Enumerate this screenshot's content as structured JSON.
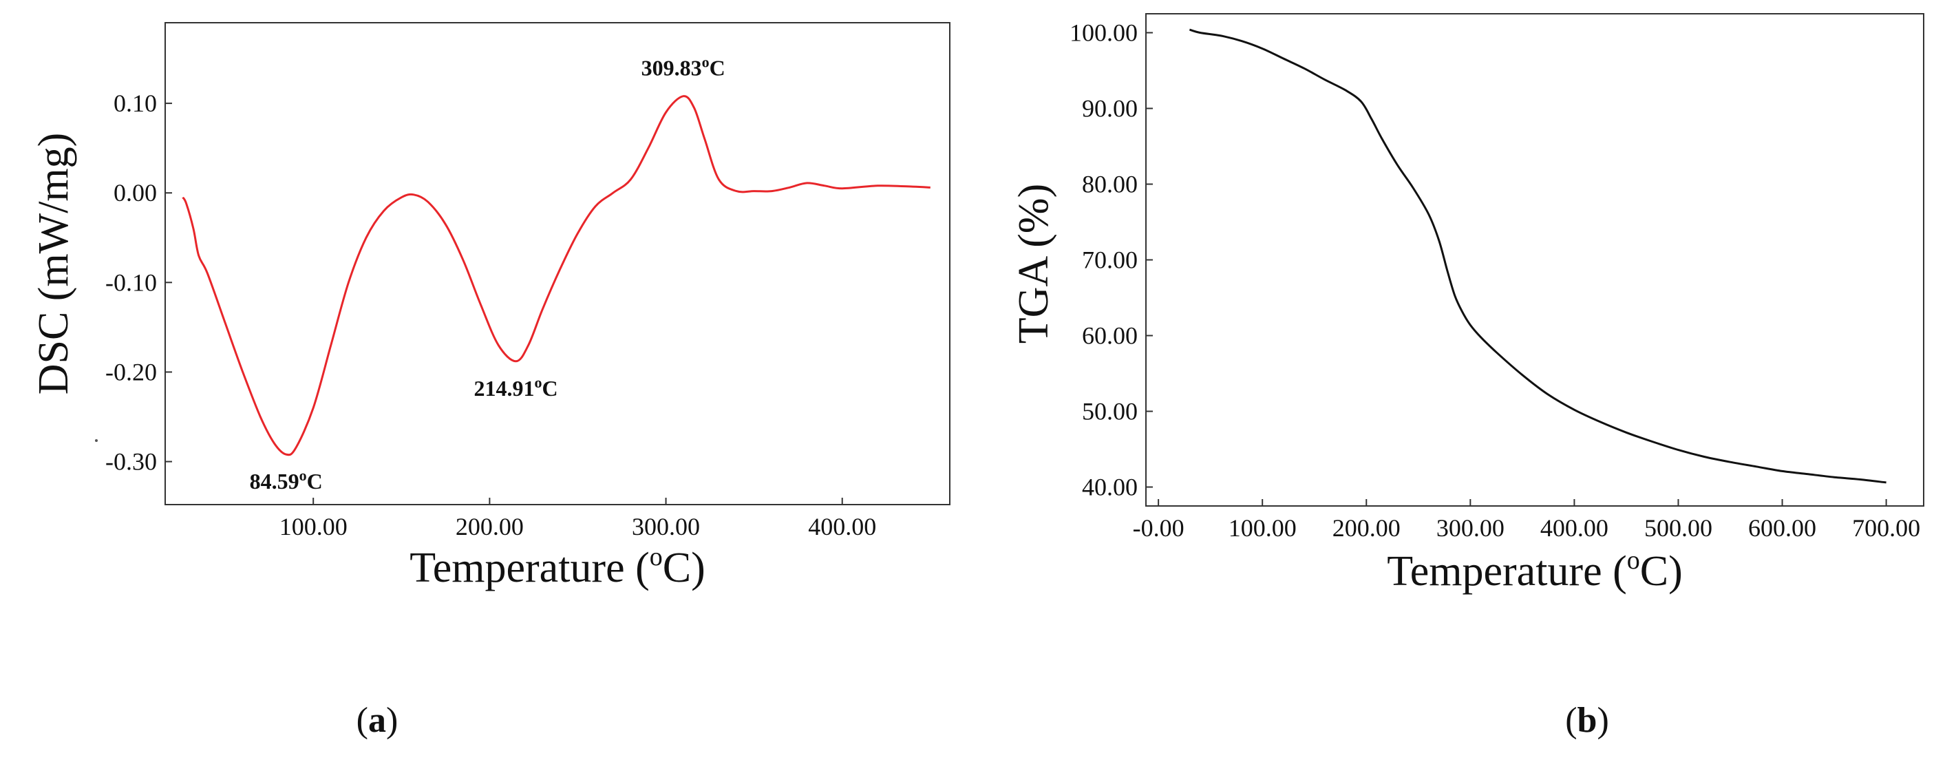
{
  "chart_data": [
    {
      "panel": "(a)",
      "panel_open": "(",
      "panel_letter": "a",
      "panel_close": ")",
      "type": "line",
      "title": "",
      "xlabel": "Temperature (oC)",
      "ylabel": "DSC (mW/mg)",
      "xlim": [
        16,
        461
      ],
      "ylim": [
        -0.348,
        0.19
      ],
      "xticks": [
        100,
        200,
        300,
        400
      ],
      "xtick_labels": [
        "100.00",
        "200.00",
        "300.00",
        "400.00"
      ],
      "yticks": [
        -0.3,
        -0.2,
        -0.1,
        0.0,
        0.1
      ],
      "ytick_labels": [
        "-0.30",
        "-0.20",
        "-0.10",
        "0.00",
        "0.10"
      ],
      "grid": false,
      "series": [
        {
          "name": "DSC",
          "color": "#e8262a",
          "x": [
            26,
            28,
            32,
            35,
            40,
            50,
            60,
            70,
            78,
            84.59,
            90,
            100,
            110,
            120,
            130,
            140,
            150,
            157,
            165,
            175,
            185,
            195,
            205,
            214.91,
            222,
            230,
            240,
            250,
            260,
            270,
            280,
            290,
            300,
            309.83,
            316,
            322,
            330,
            340,
            350,
            360,
            370,
            380,
            390,
            400,
            420,
            440,
            450
          ],
          "y": [
            -0.005,
            -0.012,
            -0.04,
            -0.07,
            -0.09,
            -0.145,
            -0.2,
            -0.25,
            -0.28,
            -0.292,
            -0.285,
            -0.24,
            -0.17,
            -0.1,
            -0.05,
            -0.02,
            -0.005,
            -0.002,
            -0.01,
            -0.035,
            -0.075,
            -0.125,
            -0.17,
            -0.188,
            -0.17,
            -0.13,
            -0.085,
            -0.045,
            -0.015,
            0.0,
            0.015,
            0.05,
            0.09,
            0.108,
            0.095,
            0.06,
            0.015,
            0.002,
            0.002,
            0.002,
            0.006,
            0.011,
            0.008,
            0.005,
            0.008,
            0.007,
            0.006
          ]
        }
      ],
      "annotations": [
        {
          "text": "84.59oC",
          "main": "84.59",
          "sup": "o",
          "unit": "C",
          "x": 84.59,
          "y": -0.292,
          "position": "below"
        },
        {
          "text": "214.91oC",
          "main": "214.91",
          "sup": "o",
          "unit": "C",
          "x": 214.91,
          "y": -0.188,
          "position": "below"
        },
        {
          "text": "309.83oC",
          "main": "309.83",
          "sup": "o",
          "unit": "C",
          "x": 309.83,
          "y": 0.108,
          "position": "above"
        }
      ]
    },
    {
      "panel": "(b)",
      "panel_open": "(",
      "panel_letter": "b",
      "panel_close": ")",
      "type": "line",
      "title": "",
      "xlabel": "Temperature (oC)",
      "ylabel": "TGA (%)",
      "xlim": [
        -12,
        736
      ],
      "ylim": [
        37.5,
        102.5
      ],
      "xticks": [
        0,
        100,
        200,
        300,
        400,
        500,
        600,
        700
      ],
      "xtick_labels": [
        "-0.00",
        "100.00",
        "200.00",
        "300.00",
        "400.00",
        "500.00",
        "600.00",
        "700.00"
      ],
      "yticks": [
        40,
        50,
        60,
        70,
        80,
        90,
        100
      ],
      "ytick_labels": [
        "40.00",
        "50.00",
        "60.00",
        "70.00",
        "80.00",
        "90.00",
        "100.00"
      ],
      "grid": false,
      "series": [
        {
          "name": "TGA",
          "color": "#111111",
          "x": [
            30,
            40,
            60,
            80,
            100,
            120,
            140,
            160,
            180,
            195,
            205,
            215,
            230,
            245,
            260,
            270,
            278,
            285,
            292,
            300,
            310,
            325,
            350,
            375,
            400,
            425,
            450,
            475,
            500,
            525,
            550,
            575,
            600,
            625,
            650,
            675,
            700
          ],
          "y": [
            100.4,
            100.0,
            99.6,
            98.9,
            97.9,
            96.6,
            95.3,
            93.8,
            92.4,
            90.9,
            88.6,
            86.0,
            82.5,
            79.5,
            76.0,
            72.5,
            68.5,
            65.3,
            63.2,
            61.4,
            59.8,
            57.8,
            54.8,
            52.2,
            50.2,
            48.6,
            47.2,
            46.0,
            44.9,
            44.0,
            43.3,
            42.7,
            42.1,
            41.7,
            41.3,
            41.0,
            40.6
          ]
        }
      ],
      "annotations": []
    }
  ]
}
